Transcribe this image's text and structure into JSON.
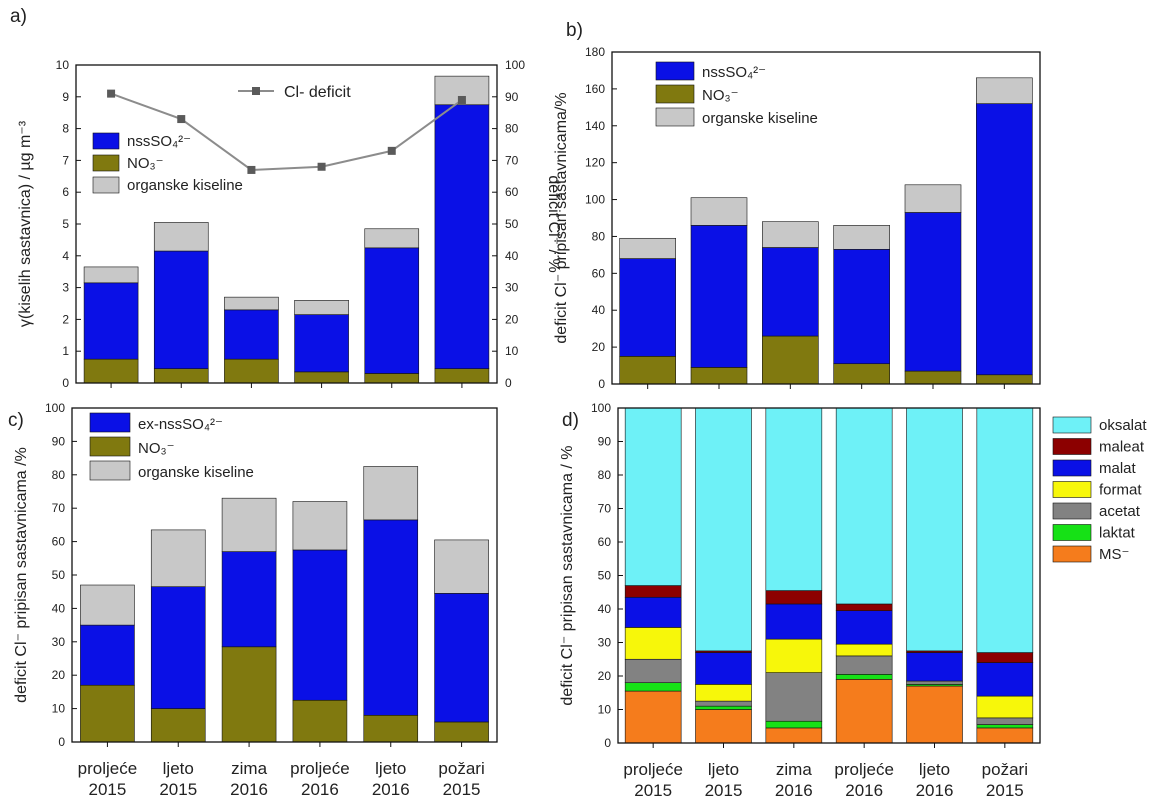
{
  "colors": {
    "nss": "#0a10e6",
    "no3": "#80790f",
    "org": "#c8c8c8",
    "oksalat": "#6ef1f7",
    "maleat": "#8c0000",
    "malat": "#0a10e6",
    "format": "#f7f70a",
    "acetat": "#828282",
    "laktat": "#16e116",
    "ms": "#f57c1c",
    "line": "#8c8c8c",
    "marker": "#5a5a5a"
  },
  "chart_data": [
    {
      "panel": "a)",
      "type": "bar",
      "stacked": true,
      "categories": [
        "proljeće 2015",
        "ljeto 2015",
        "zima 2016",
        "proljeće 2016",
        "ljeto 2016",
        "požari 2015"
      ],
      "ylabel": "γ(kiselih sastavnica) / µg m⁻³",
      "ylim": [
        0,
        10
      ],
      "yticks": [
        0,
        1,
        2,
        3,
        4,
        5,
        6,
        7,
        8,
        9,
        10
      ],
      "y2label": "deficit Cl⁻ / %",
      "y2lim": [
        0,
        100
      ],
      "y2ticks": [
        0,
        10,
        20,
        30,
        40,
        50,
        60,
        70,
        80,
        90,
        100
      ],
      "series": [
        {
          "name": "NO₃⁻",
          "key": "no3",
          "values": [
            0.75,
            0.45,
            0.75,
            0.35,
            0.3,
            0.45
          ]
        },
        {
          "name": "nssSO₄²⁻",
          "key": "nss",
          "values": [
            2.4,
            3.7,
            1.55,
            1.8,
            3.95,
            8.3
          ]
        },
        {
          "name": "organske kiseline",
          "key": "org",
          "values": [
            0.5,
            0.9,
            0.4,
            0.45,
            0.6,
            0.9
          ]
        }
      ],
      "legend": [
        "nssSO₄²⁻",
        "NO₃⁻",
        "organske kiseline"
      ],
      "line": {
        "name": "Cl- deficit",
        "axis": "right",
        "values": [
          91,
          83,
          67,
          68,
          73,
          89
        ]
      }
    },
    {
      "panel": "b)",
      "type": "bar",
      "stacked": true,
      "categories": [
        "proljeće 2015",
        "ljeto 2015",
        "zima 2016",
        "proljeće 2016",
        "ljeto 2016",
        "požari 2015"
      ],
      "ylabel": "deficit Cl⁻ pripisan sastavnicama/%",
      "ylim": [
        0,
        180
      ],
      "yticks": [
        0,
        20,
        40,
        60,
        80,
        100,
        120,
        140,
        160,
        180
      ],
      "series": [
        {
          "name": "NO₃⁻",
          "key": "no3",
          "values": [
            15,
            9,
            26,
            11,
            7,
            5
          ]
        },
        {
          "name": "nssSO₄²⁻",
          "key": "nss",
          "values": [
            53,
            77,
            48,
            62,
            86,
            147
          ]
        },
        {
          "name": "organske kiseline",
          "key": "org",
          "values": [
            11,
            15,
            14,
            13,
            15,
            14
          ]
        }
      ],
      "legend": [
        "nssSO₄²⁻",
        "NO₃⁻",
        "organske kiseline"
      ]
    },
    {
      "panel": "c)",
      "type": "bar",
      "stacked": true,
      "categories": [
        "proljeće 2015",
        "ljeto 2015",
        "zima 2016",
        "proljeće 2016",
        "ljeto 2016",
        "požari 2015"
      ],
      "ylabel": "deficit Cl⁻ pripisan sastavnicama /%",
      "ylim": [
        0,
        100
      ],
      "yticks": [
        0,
        10,
        20,
        30,
        40,
        50,
        60,
        70,
        80,
        90,
        100
      ],
      "series": [
        {
          "name": "NO₃⁻",
          "key": "no3",
          "values": [
            17,
            10,
            28.5,
            12.5,
            8,
            6
          ]
        },
        {
          "name": "ex-nssSO₄²⁻",
          "key": "nss",
          "values": [
            18,
            36.5,
            28.5,
            45,
            58.5,
            38.5
          ]
        },
        {
          "name": "organske kiseline",
          "key": "org",
          "values": [
            12,
            17,
            16,
            14.5,
            16,
            16
          ]
        }
      ],
      "legend": [
        "ex-nssSO₄²⁻",
        "NO₃⁻",
        "organske kiseline"
      ]
    },
    {
      "panel": "d)",
      "type": "bar",
      "stacked": true,
      "categories": [
        "proljeće 2015",
        "ljeto 2015",
        "zima 2016",
        "proljeće 2016",
        "ljeto 2016",
        "požari 2015"
      ],
      "ylabel": "deficit Cl⁻ pripisan sastavnicama / %",
      "ylim": [
        0,
        100
      ],
      "yticks": [
        0,
        10,
        20,
        30,
        40,
        50,
        60,
        70,
        80,
        90,
        100
      ],
      "series": [
        {
          "name": "MS⁻",
          "key": "ms",
          "values": [
            15.5,
            10,
            4.5,
            19,
            17,
            4.5
          ]
        },
        {
          "name": "laktat",
          "key": "laktat",
          "values": [
            2.5,
            1,
            2,
            1.5,
            0.5,
            1
          ]
        },
        {
          "name": "acetat",
          "key": "acetat",
          "values": [
            7,
            1.5,
            14.5,
            5.5,
            1,
            2
          ]
        },
        {
          "name": "format",
          "key": "format",
          "values": [
            9.5,
            5,
            10,
            3.5,
            0,
            6.5
          ]
        },
        {
          "name": "malat",
          "key": "malat",
          "values": [
            9,
            9.5,
            10.5,
            10,
            8.5,
            10
          ]
        },
        {
          "name": "maleat",
          "key": "maleat",
          "values": [
            3.5,
            0.5,
            4,
            2,
            0.5,
            3
          ]
        },
        {
          "name": "oksalat",
          "key": "oksalat",
          "values": [
            53,
            72.5,
            54.5,
            58.5,
            72.5,
            73
          ]
        }
      ],
      "legend": [
        "oksalat",
        "maleat",
        "malat",
        "format",
        "acetat",
        "laktat",
        "MS⁻"
      ]
    }
  ]
}
